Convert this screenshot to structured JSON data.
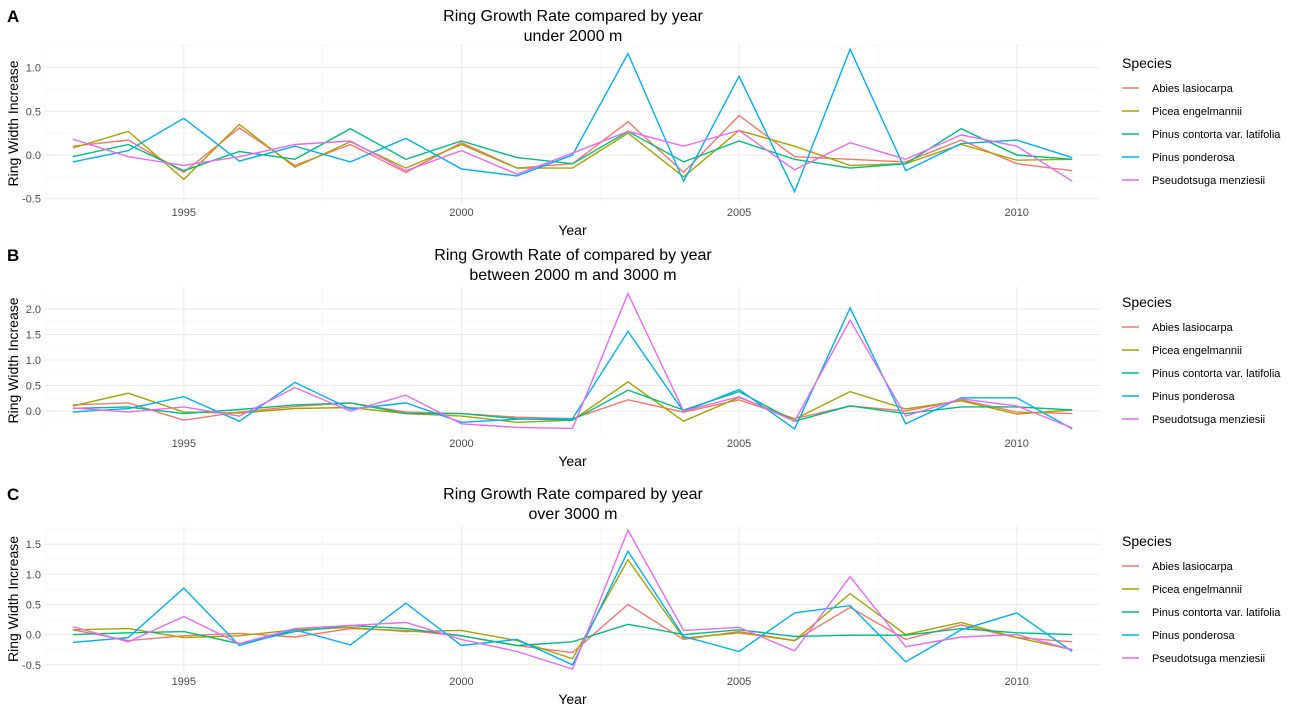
{
  "colors": {
    "Abies lasiocarpa": "#F8766D",
    "Picea engelmannii": "#A3A500",
    "Pinus contorta var. latifolia": "#00BF7D",
    "Pinus ponderosa": "#00B0F6",
    "Pseudotsuga menziesii": "#E76BF3"
  },
  "chart_data": [
    {
      "panel": "A",
      "type": "line",
      "title": "Ring Growth Rate compared by year\nunder 2000 m",
      "xlabel": "Year",
      "ylabel": "Ring Width Increase",
      "legend_title": "Species",
      "legend_position": "right",
      "grid": true,
      "xlim": [
        1992.5,
        2011.5
      ],
      "ylim": [
        -0.55,
        1.27
      ],
      "x_ticks": [
        1995,
        2000,
        2005,
        2010
      ],
      "y_ticks": [
        -0.5,
        0.0,
        0.5,
        1.0
      ],
      "y_tick_labels": [
        "-0.5",
        "0.0",
        "0.5",
        "1.0"
      ],
      "x": [
        1993,
        1994,
        1995,
        1996,
        1997,
        1998,
        1999,
        2000,
        2001,
        2002,
        2003,
        2004,
        2005,
        2006,
        2007,
        2008,
        2009,
        2010,
        2011
      ],
      "series": [
        {
          "name": "Abies lasiocarpa",
          "values": [
            0.1,
            0.17,
            -0.2,
            0.31,
            -0.12,
            0.12,
            -0.2,
            0.14,
            -0.15,
            -0.1,
            0.38,
            -0.2,
            0.45,
            -0.02,
            -0.05,
            -0.08,
            0.17,
            -0.1,
            -0.18
          ]
        },
        {
          "name": "Picea engelmannii",
          "values": [
            0.08,
            0.27,
            -0.28,
            0.35,
            -0.14,
            0.15,
            -0.15,
            0.12,
            -0.15,
            -0.15,
            0.25,
            -0.25,
            0.28,
            0.1,
            -0.12,
            -0.1,
            0.12,
            -0.06,
            -0.05
          ]
        },
        {
          "name": "Pinus contorta var. latifolia",
          "values": [
            -0.02,
            0.12,
            -0.18,
            0.04,
            -0.05,
            0.3,
            -0.05,
            0.16,
            -0.03,
            -0.1,
            0.27,
            -0.08,
            0.16,
            -0.05,
            -0.15,
            -0.1,
            0.3,
            0.0,
            -0.05
          ]
        },
        {
          "name": "Pinus ponderosa",
          "values": [
            -0.08,
            0.05,
            0.42,
            -0.07,
            0.1,
            -0.08,
            0.19,
            -0.16,
            -0.24,
            0.0,
            1.16,
            -0.3,
            0.9,
            -0.42,
            1.21,
            -0.18,
            0.13,
            0.17,
            -0.03
          ]
        },
        {
          "name": "Pseudotsuga menziesii",
          "values": [
            0.18,
            -0.02,
            -0.12,
            -0.02,
            0.12,
            0.16,
            -0.18,
            0.05,
            -0.22,
            0.02,
            0.27,
            0.1,
            0.28,
            -0.17,
            0.14,
            -0.05,
            0.23,
            0.1,
            -0.3
          ]
        }
      ]
    },
    {
      "panel": "B",
      "type": "line",
      "title": "Ring Growth Rate of compared by year\nbetween 2000 m and 3000 m",
      "xlabel": "Year",
      "ylabel": "Ring Width Increase",
      "legend_title": "Species",
      "legend_position": "right",
      "grid": true,
      "xlim": [
        1992.5,
        2011.5
      ],
      "ylim": [
        -0.45,
        2.43
      ],
      "x_ticks": [
        1995,
        2000,
        2005,
        2010
      ],
      "y_ticks": [
        0.0,
        0.5,
        1.0,
        1.5,
        2.0
      ],
      "y_tick_labels": [
        "0.0",
        "0.5",
        "1.0",
        "1.5",
        "2.0"
      ],
      "x": [
        1993,
        1994,
        1995,
        1996,
        1997,
        1998,
        1999,
        2000,
        2001,
        2002,
        2003,
        2004,
        2005,
        2006,
        2007,
        2008,
        2009,
        2010,
        2011
      ],
      "series": [
        {
          "name": "Abies lasiocarpa",
          "values": [
            0.12,
            0.16,
            -0.18,
            -0.02,
            0.09,
            0.16,
            -0.02,
            -0.05,
            -0.12,
            -0.15,
            0.22,
            -0.02,
            0.22,
            -0.15,
            0.1,
            0.0,
            0.22,
            -0.02,
            -0.05
          ]
        },
        {
          "name": "Picea engelmannii",
          "values": [
            0.1,
            0.35,
            -0.02,
            -0.04,
            0.05,
            0.07,
            -0.05,
            -0.1,
            -0.22,
            -0.18,
            0.57,
            -0.2,
            0.27,
            -0.16,
            0.38,
            0.04,
            0.2,
            -0.06,
            0.02
          ]
        },
        {
          "name": "Pinus contorta var. latifolia",
          "values": [
            0.05,
            0.08,
            -0.05,
            0.03,
            0.12,
            0.16,
            -0.05,
            -0.05,
            -0.15,
            -0.18,
            0.41,
            0.02,
            0.38,
            -0.2,
            0.1,
            -0.05,
            0.08,
            0.08,
            0.02
          ]
        },
        {
          "name": "Pinus ponderosa",
          "values": [
            -0.02,
            0.05,
            0.28,
            -0.2,
            0.56,
            0.04,
            0.16,
            -0.22,
            -0.16,
            -0.15,
            1.56,
            -0.01,
            0.42,
            -0.35,
            2.02,
            -0.25,
            0.26,
            0.26,
            -0.35
          ]
        },
        {
          "name": "Pseudotsuga menziesii",
          "values": [
            0.06,
            -0.02,
            0.08,
            -0.1,
            0.46,
            0.0,
            0.31,
            -0.25,
            -0.32,
            -0.34,
            2.3,
            0.0,
            0.28,
            -0.2,
            1.78,
            -0.1,
            0.24,
            0.1,
            -0.33
          ]
        }
      ]
    },
    {
      "panel": "C",
      "type": "line",
      "title": "Ring Growth Rate compared by year\nover 3000 m",
      "xlabel": "Year",
      "ylabel": "Ring Width Increase",
      "legend_title": "Species",
      "legend_position": "right",
      "grid": true,
      "xlim": [
        1992.5,
        2011.5
      ],
      "ylim": [
        -0.62,
        1.8
      ],
      "x_ticks": [
        1995,
        2000,
        2005,
        2010
      ],
      "y_ticks": [
        -0.5,
        0.0,
        0.5,
        1.0,
        1.5
      ],
      "y_tick_labels": [
        "-0.5",
        "0.0",
        "0.5",
        "1.0",
        "1.5"
      ],
      "x": [
        1993,
        1994,
        1995,
        1996,
        1997,
        1998,
        1999,
        2000,
        2001,
        2002,
        2003,
        2004,
        2005,
        2006,
        2007,
        2008,
        2009,
        2010,
        2011
      ],
      "series": [
        {
          "name": "Abies lasiocarpa",
          "values": [
            0.08,
            -0.1,
            -0.02,
            0.02,
            -0.04,
            0.1,
            0.07,
            -0.02,
            -0.18,
            -0.3,
            0.5,
            -0.08,
            0.05,
            -0.1,
            0.45,
            -0.08,
            0.16,
            -0.05,
            -0.12
          ]
        },
        {
          "name": "Picea engelmannii",
          "values": [
            0.08,
            0.1,
            -0.05,
            -0.02,
            0.08,
            0.12,
            0.05,
            0.07,
            -0.1,
            -0.4,
            1.24,
            -0.06,
            0.03,
            -0.1,
            0.68,
            0.0,
            0.2,
            -0.05,
            -0.25
          ]
        },
        {
          "name": "Pinus contorta var. latifolia",
          "values": [
            0.0,
            0.03,
            0.05,
            -0.15,
            0.05,
            0.15,
            0.1,
            -0.02,
            -0.18,
            -0.12,
            0.17,
            0.0,
            0.08,
            -0.03,
            -0.01,
            -0.01,
            0.1,
            0.03,
            0.0
          ]
        },
        {
          "name": "Pinus ponderosa",
          "values": [
            -0.13,
            -0.05,
            0.77,
            -0.18,
            0.08,
            -0.17,
            0.52,
            -0.18,
            -0.08,
            -0.5,
            1.38,
            -0.03,
            -0.28,
            0.36,
            0.48,
            -0.45,
            0.08,
            0.36,
            -0.28
          ]
        },
        {
          "name": "Pseudotsuga menziesii",
          "values": [
            0.13,
            -0.12,
            0.3,
            -0.15,
            0.1,
            0.15,
            0.2,
            -0.08,
            -0.28,
            -0.57,
            1.73,
            0.07,
            0.12,
            -0.27,
            0.96,
            -0.2,
            -0.04,
            0.0,
            -0.25
          ]
        }
      ]
    }
  ]
}
